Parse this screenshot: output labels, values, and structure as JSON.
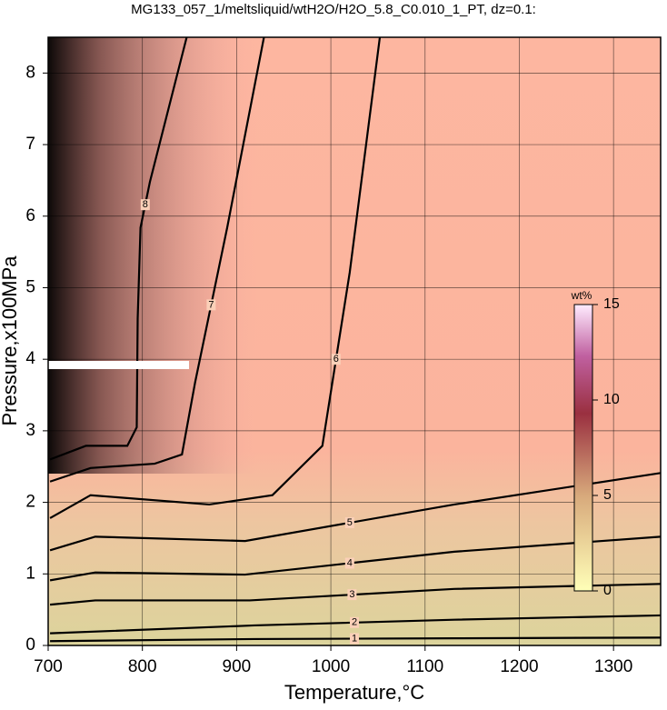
{
  "chart_data": {
    "type": "contour",
    "title": "MG133_057_1/meltsliquid/wtH2O/H2O_5.8_C0.010_1_PT, dz=0.1:",
    "xlabel": "Temperature,°C",
    "ylabel": "Pressure,x100MPa",
    "xlim": [
      700,
      1350
    ],
    "xticks": [
      700,
      800,
      900,
      1000,
      1100,
      1200,
      1300
    ],
    "ylim": [
      0,
      8.5
    ],
    "yticks": [
      0,
      1,
      2,
      3,
      4,
      5,
      6,
      7,
      8
    ],
    "grid": true,
    "contours": [
      {
        "level": 8,
        "x": [
          847,
          808,
          798,
          795,
          794,
          784,
          740,
          702
        ],
        "y": [
          8.5,
          6.48,
          5.84,
          4.57,
          3.05,
          2.79,
          2.79,
          2.6
        ]
      },
      {
        "level": 7,
        "x": [
          929,
          890,
          856,
          842,
          813,
          745,
          702
        ],
        "y": [
          8.5,
          5.84,
          3.68,
          2.67,
          2.54,
          2.48,
          2.29
        ]
      },
      {
        "level": 6,
        "x": [
          1052,
          1020,
          991,
          938,
          871,
          745,
          702
        ],
        "y": [
          8.5,
          5.21,
          2.79,
          2.1,
          1.97,
          2.1,
          1.78
        ]
      },
      {
        "level": 5,
        "x": [
          1350,
          1131,
          909,
          750,
          702
        ],
        "y": [
          2.41,
          1.97,
          1.46,
          1.52,
          1.33
        ]
      },
      {
        "level": 4,
        "x": [
          1350,
          1131,
          909,
          750,
          702
        ],
        "y": [
          1.52,
          1.31,
          0.99,
          1.02,
          0.91
        ]
      },
      {
        "level": 3,
        "x": [
          1350,
          1131,
          914,
          750,
          702
        ],
        "y": [
          0.86,
          0.79,
          0.63,
          0.63,
          0.57
        ]
      },
      {
        "level": 2,
        "x": [
          1350,
          1131,
          919,
          702
        ],
        "y": [
          0.42,
          0.36,
          0.28,
          0.17
        ]
      },
      {
        "level": 1,
        "x": [
          1350,
          1131,
          919,
          702
        ],
        "y": [
          0.11,
          0.1,
          0.09,
          0.06
        ]
      }
    ],
    "colorbar": {
      "label": "wt%",
      "lim": [
        0,
        15
      ],
      "ticks": [
        0,
        5,
        10,
        15
      ]
    }
  }
}
